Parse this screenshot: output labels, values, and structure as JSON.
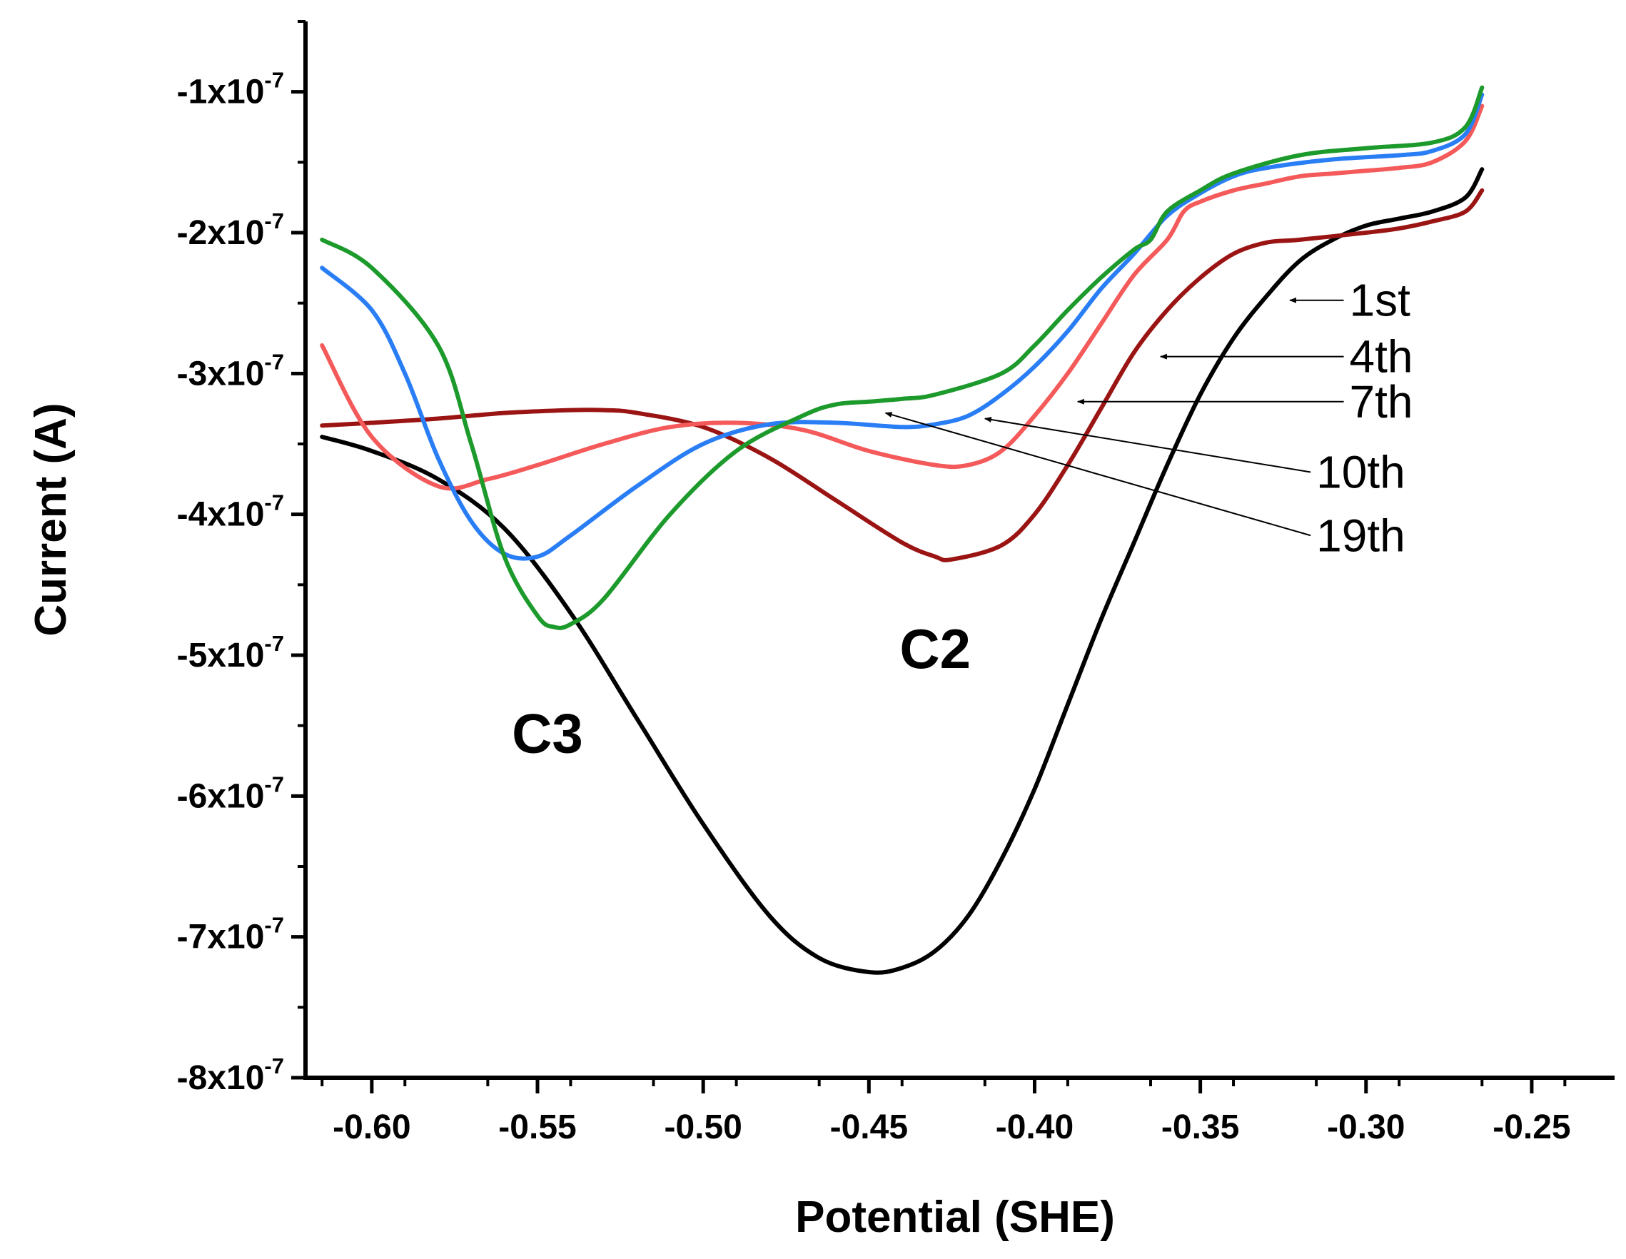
{
  "chart_data": {
    "type": "line",
    "title": "",
    "xlabel": "Potential (SHE)",
    "ylabel": "Current (A)",
    "xlim": [
      -0.62,
      -0.225
    ],
    "ylim": [
      -8e-07,
      -5e-08
    ],
    "x_ticks": [
      {
        "value": -0.6,
        "label": "-0.60"
      },
      {
        "value": -0.55,
        "label": "-0.55"
      },
      {
        "value": -0.5,
        "label": "-0.50"
      },
      {
        "value": -0.45,
        "label": "-0.45"
      },
      {
        "value": -0.4,
        "label": "-0.40"
      },
      {
        "value": -0.35,
        "label": "-0.35"
      },
      {
        "value": -0.3,
        "label": "-0.30"
      },
      {
        "value": -0.25,
        "label": "-0.25"
      }
    ],
    "y_ticks": [
      {
        "value": -1e-07,
        "mantissa": "-1x10",
        "exponent": "-7"
      },
      {
        "value": -2e-07,
        "mantissa": "-2x10",
        "exponent": "-7"
      },
      {
        "value": -3e-07,
        "mantissa": "-3x10",
        "exponent": "-7"
      },
      {
        "value": -4e-07,
        "mantissa": "-4x10",
        "exponent": "-7"
      },
      {
        "value": -5e-07,
        "mantissa": "-5x10",
        "exponent": "-7"
      },
      {
        "value": -6e-07,
        "mantissa": "-6x10",
        "exponent": "-7"
      },
      {
        "value": -7e-07,
        "mantissa": "-7x10",
        "exponent": "-7"
      },
      {
        "value": -8e-07,
        "mantissa": "-8x10",
        "exponent": "-7"
      }
    ],
    "series": [
      {
        "name": "1st",
        "color": "#000000",
        "x": [
          -0.615,
          -0.6,
          -0.58,
          -0.56,
          -0.54,
          -0.52,
          -0.5,
          -0.48,
          -0.465,
          -0.45,
          -0.44,
          -0.43,
          -0.42,
          -0.41,
          -0.4,
          -0.39,
          -0.38,
          -0.37,
          -0.36,
          -0.35,
          -0.34,
          -0.33,
          -0.32,
          -0.31,
          -0.3,
          -0.29,
          -0.28,
          -0.27,
          -0.265
        ],
        "y": [
          -3.45e-07,
          -3.55e-07,
          -3.75e-07,
          -4.1e-07,
          -4.7e-07,
          -5.45e-07,
          -6.2e-07,
          -6.85e-07,
          -7.15e-07,
          -7.25e-07,
          -7.22e-07,
          -7.1e-07,
          -6.85e-07,
          -6.45e-07,
          -5.95e-07,
          -5.35e-07,
          -4.75e-07,
          -4.2e-07,
          -3.65e-07,
          -3.15e-07,
          -2.75e-07,
          -2.45e-07,
          -2.2e-07,
          -2.05e-07,
          -1.95e-07,
          -1.9e-07,
          -1.85e-07,
          -1.75e-07,
          -1.55e-07
        ]
      },
      {
        "name": "4th",
        "color": "#9b1414",
        "x": [
          -0.615,
          -0.6,
          -0.58,
          -0.56,
          -0.54,
          -0.53,
          -0.52,
          -0.5,
          -0.48,
          -0.46,
          -0.44,
          -0.43,
          -0.425,
          -0.41,
          -0.4,
          -0.39,
          -0.38,
          -0.37,
          -0.36,
          -0.35,
          -0.34,
          -0.33,
          -0.32,
          -0.3,
          -0.29,
          -0.28,
          -0.27,
          -0.265
        ],
        "y": [
          -3.37e-07,
          -3.35e-07,
          -3.32e-07,
          -3.28e-07,
          -3.26e-07,
          -3.26e-07,
          -3.28e-07,
          -3.38e-07,
          -3.6e-07,
          -3.9e-07,
          -4.2e-07,
          -4.3e-07,
          -4.32e-07,
          -4.22e-07,
          -4e-07,
          -3.65e-07,
          -3.25e-07,
          -2.85e-07,
          -2.55e-07,
          -2.32e-07,
          -2.15e-07,
          -2.07e-07,
          -2.05e-07,
          -2e-07,
          -1.97e-07,
          -1.92e-07,
          -1.85e-07,
          -1.7e-07
        ]
      },
      {
        "name": "7th",
        "color": "#f55a5a",
        "x": [
          -0.615,
          -0.6,
          -0.58,
          -0.565,
          -0.55,
          -0.53,
          -0.51,
          -0.49,
          -0.47,
          -0.45,
          -0.43,
          -0.42,
          -0.41,
          -0.4,
          -0.39,
          -0.38,
          -0.37,
          -0.36,
          -0.355,
          -0.35,
          -0.34,
          -0.33,
          -0.32,
          -0.31,
          -0.3,
          -0.29,
          -0.28,
          -0.27,
          -0.265
        ],
        "y": [
          -2.8e-07,
          -3.45e-07,
          -3.8e-07,
          -3.75e-07,
          -3.65e-07,
          -3.5e-07,
          -3.38e-07,
          -3.35e-07,
          -3.4e-07,
          -3.55e-07,
          -3.65e-07,
          -3.65e-07,
          -3.55e-07,
          -3.3e-07,
          -3e-07,
          -2.65e-07,
          -2.3e-07,
          -2.05e-07,
          -1.85e-07,
          -1.78e-07,
          -1.7e-07,
          -1.65e-07,
          -1.6e-07,
          -1.58e-07,
          -1.56e-07,
          -1.54e-07,
          -1.5e-07,
          -1.35e-07,
          -1.1e-07
        ]
      },
      {
        "name": "10th",
        "color": "#2a7ef5",
        "x": [
          -0.615,
          -0.6,
          -0.59,
          -0.58,
          -0.57,
          -0.56,
          -0.55,
          -0.54,
          -0.52,
          -0.5,
          -0.48,
          -0.46,
          -0.44,
          -0.43,
          -0.42,
          -0.41,
          -0.4,
          -0.39,
          -0.38,
          -0.37,
          -0.36,
          -0.35,
          -0.34,
          -0.33,
          -0.31,
          -0.29,
          -0.28,
          -0.27,
          -0.265
        ],
        "y": [
          -2.25e-07,
          -2.55e-07,
          -3e-07,
          -3.6e-07,
          -4.05e-07,
          -4.28e-07,
          -4.3e-07,
          -4.15e-07,
          -3.8e-07,
          -3.5e-07,
          -3.36e-07,
          -3.35e-07,
          -3.38e-07,
          -3.36e-07,
          -3.3e-07,
          -3.15e-07,
          -2.95e-07,
          -2.7e-07,
          -2.4e-07,
          -2.15e-07,
          -1.88e-07,
          -1.72e-07,
          -1.6e-07,
          -1.54e-07,
          -1.48e-07,
          -1.45e-07,
          -1.42e-07,
          -1.3e-07,
          -1.02e-07
        ]
      },
      {
        "name": "19th",
        "color": "#1d9a2c",
        "x": [
          -0.615,
          -0.6,
          -0.58,
          -0.57,
          -0.56,
          -0.55,
          -0.545,
          -0.54,
          -0.53,
          -0.51,
          -0.49,
          -0.47,
          -0.46,
          -0.45,
          -0.44,
          -0.43,
          -0.41,
          -0.4,
          -0.39,
          -0.38,
          -0.37,
          -0.365,
          -0.36,
          -0.35,
          -0.34,
          -0.32,
          -0.3,
          -0.28,
          -0.27,
          -0.265
        ],
        "y": [
          -2.05e-07,
          -2.25e-07,
          -2.8e-07,
          -3.5e-07,
          -4.3e-07,
          -4.72e-07,
          -4.8e-07,
          -4.78e-07,
          -4.6e-07,
          -4e-07,
          -3.55e-07,
          -3.3e-07,
          -3.22e-07,
          -3.2e-07,
          -3.18e-07,
          -3.15e-07,
          -3e-07,
          -2.8e-07,
          -2.55e-07,
          -2.32e-07,
          -2.12e-07,
          -2.05e-07,
          -1.85e-07,
          -1.7e-07,
          -1.58e-07,
          -1.45e-07,
          -1.4e-07,
          -1.36e-07,
          -1.25e-07,
          -9.7e-08
        ]
      }
    ],
    "peak_labels": [
      {
        "text": "C2",
        "x": -0.43,
        "y": -4.95e-07
      },
      {
        "text": "C3",
        "x": -0.547,
        "y": -5.55e-07
      }
    ],
    "annotations": [
      {
        "text": "1st",
        "label_x": -0.305,
        "label_y": -2.48e-07,
        "tip_x": -0.323,
        "tip_y": -2.48e-07
      },
      {
        "text": "4th",
        "label_x": -0.305,
        "label_y": -2.88e-07,
        "tip_x": -0.362,
        "tip_y": -2.88e-07
      },
      {
        "text": "7th",
        "label_x": -0.305,
        "label_y": -3.2e-07,
        "tip_x": -0.387,
        "tip_y": -3.2e-07
      },
      {
        "text": "10th",
        "label_x": -0.315,
        "label_y": -3.7e-07,
        "tip_x": -0.415,
        "tip_y": -3.32e-07
      },
      {
        "text": "19th",
        "label_x": -0.315,
        "label_y": -4.15e-07,
        "tip_x": -0.445,
        "tip_y": -3.28e-07
      }
    ]
  }
}
